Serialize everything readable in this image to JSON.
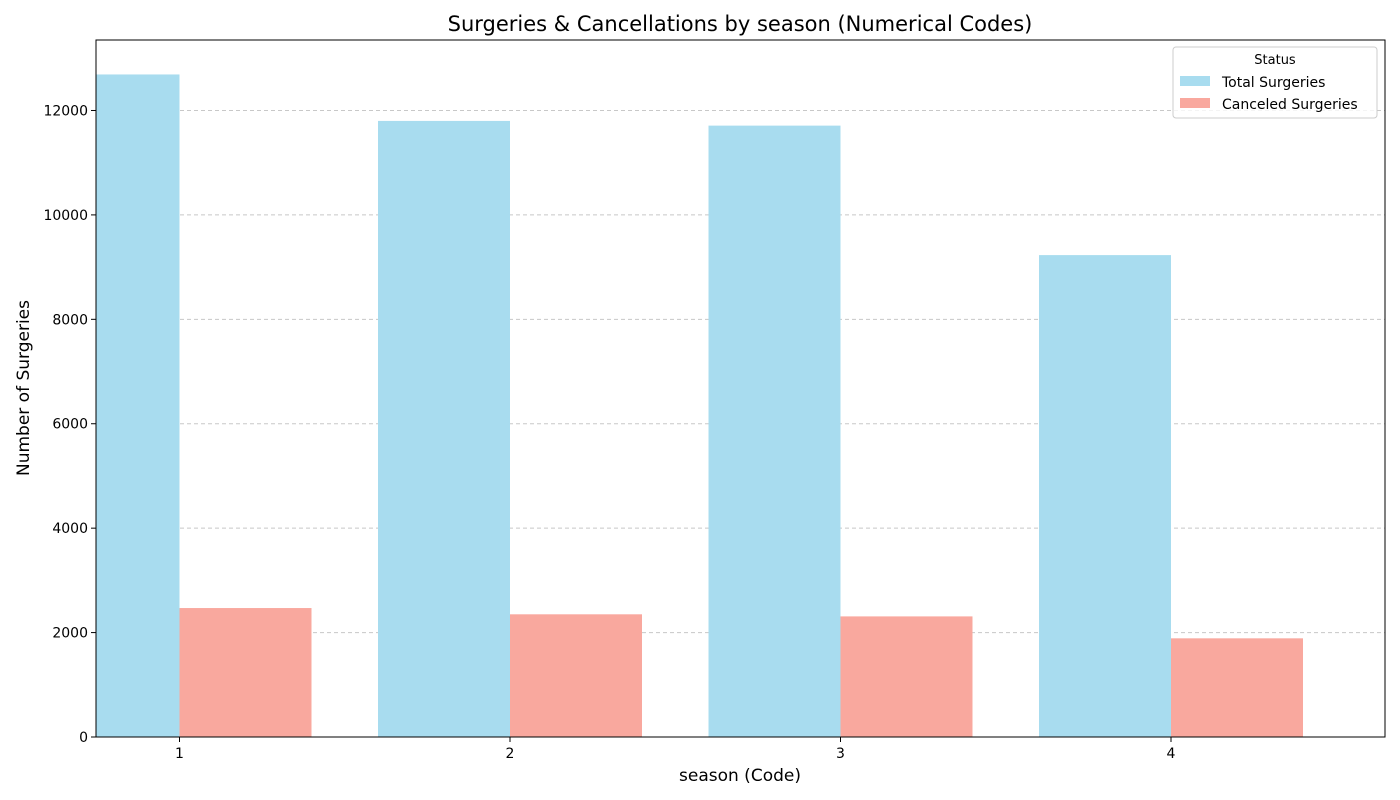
{
  "chart_data": {
    "type": "bar",
    "title": "Surgeries & Cancellations by season (Numerical Codes)",
    "xlabel": "season (Code)",
    "ylabel": "Number of Surgeries",
    "categories": [
      "1",
      "2",
      "3",
      "4"
    ],
    "series": [
      {
        "name": "Total Surgeries",
        "color": "#a8dcef",
        "values": [
          12690,
          11800,
          11710,
          9230
        ]
      },
      {
        "name": "Canceled Surgeries",
        "color": "#f9a89e",
        "values": [
          2470,
          2350,
          2310,
          1890
        ]
      }
    ],
    "ylim": [
      0,
      13350
    ],
    "yticks": [
      0,
      2000,
      4000,
      6000,
      8000,
      10000,
      12000
    ],
    "grid": "y-dashed",
    "legend": {
      "title": "Status",
      "placement": "top-right"
    }
  }
}
